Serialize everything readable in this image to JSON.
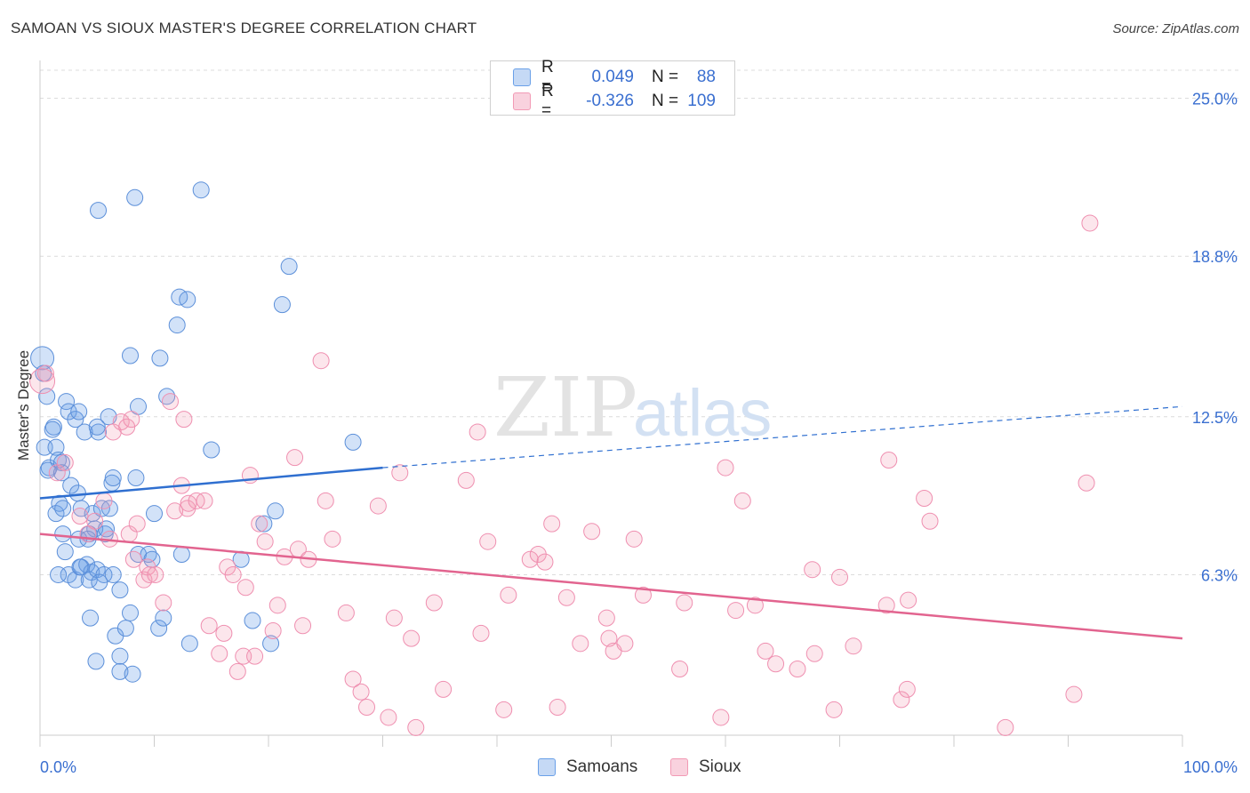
{
  "header": {
    "title": "SAMOAN VS SIOUX MASTER'S DEGREE CORRELATION CHART",
    "source": "Source: ZipAtlas.com"
  },
  "watermark": {
    "zip": "ZIP",
    "atlas": "atlas"
  },
  "legend": {
    "rows": [
      {
        "r_label": "R =",
        "r_value": "0.049",
        "n_label": "N =",
        "n_value": "88",
        "color": "#6aa0e8"
      },
      {
        "r_label": "R =",
        "r_value": "-0.326",
        "n_label": "N =",
        "n_value": "109",
        "color": "#f29ab5"
      }
    ]
  },
  "bottom_legend": [
    "Samoans",
    "Sioux"
  ],
  "colors": {
    "blue": "#5b8fd9",
    "blue_line": "#2f6fd0",
    "pink": "#ef8fb0",
    "pink_line": "#e2648f",
    "tick_label": "#3a6fd0"
  },
  "chart_data": {
    "type": "scatter",
    "title": "SAMOAN VS SIOUX MASTER'S DEGREE CORRELATION CHART",
    "xlabel": "",
    "ylabel": "Master's Degree",
    "xlim": [
      0,
      100
    ],
    "ylim": [
      0,
      26.1
    ],
    "x_tick_labels": [
      "0.0%",
      "100.0%"
    ],
    "y_ticks": [
      6.3,
      12.5,
      18.8,
      25.0
    ],
    "y_tick_labels": [
      "6.3%",
      "12.5%",
      "18.8%",
      "25.0%"
    ],
    "grid": true,
    "legend_position": "top-center",
    "series": [
      {
        "name": "Samoans",
        "color": "#6aa0e8",
        "trend": {
          "x": [
            0,
            30
          ],
          "y": [
            9.3,
            10.5
          ],
          "dashed_to": [
            100,
            12.9
          ]
        },
        "points": [
          [
            0.2,
            14.8
          ],
          [
            0.3,
            14.2
          ],
          [
            0.6,
            13.3
          ],
          [
            0.4,
            11.3
          ],
          [
            0.8,
            10.5
          ],
          [
            1.2,
            12.1
          ],
          [
            1.4,
            11.3
          ],
          [
            1.6,
            10.8
          ],
          [
            1.1,
            12.0
          ],
          [
            0.7,
            10.4
          ],
          [
            1.9,
            10.7
          ],
          [
            2.3,
            13.1
          ],
          [
            2.5,
            12.7
          ],
          [
            2.7,
            9.8
          ],
          [
            3.1,
            12.4
          ],
          [
            3.4,
            12.7
          ],
          [
            1.4,
            8.7
          ],
          [
            1.7,
            9.1
          ],
          [
            2.0,
            8.9
          ],
          [
            3.3,
            9.5
          ],
          [
            3.6,
            8.9
          ],
          [
            3.9,
            11.9
          ],
          [
            4.6,
            8.7
          ],
          [
            4.8,
            8.1
          ],
          [
            4.3,
            7.9
          ],
          [
            5.1,
            11.9
          ],
          [
            5.4,
            8.9
          ],
          [
            5.7,
            7.9
          ],
          [
            6.0,
            12.5
          ],
          [
            5.0,
            12.1
          ],
          [
            6.3,
            9.9
          ],
          [
            6.4,
            10.1
          ],
          [
            6.1,
            8.9
          ],
          [
            2.2,
            7.2
          ],
          [
            2.5,
            6.3
          ],
          [
            3.1,
            6.1
          ],
          [
            3.6,
            6.6
          ],
          [
            4.1,
            6.7
          ],
          [
            4.3,
            6.1
          ],
          [
            4.5,
            6.4
          ],
          [
            5.0,
            6.5
          ],
          [
            5.6,
            6.3
          ],
          [
            7.0,
            5.7
          ],
          [
            7.9,
            4.8
          ],
          [
            8.4,
            10.1
          ],
          [
            8.6,
            7.1
          ],
          [
            9.5,
            7.1
          ],
          [
            9.8,
            6.9
          ],
          [
            10.0,
            8.7
          ],
          [
            10.4,
            4.2
          ],
          [
            10.8,
            4.6
          ],
          [
            11.1,
            13.3
          ],
          [
            12.4,
            7.1
          ],
          [
            13.1,
            3.6
          ],
          [
            12.0,
            16.1
          ],
          [
            12.2,
            17.2
          ],
          [
            12.9,
            17.1
          ],
          [
            14.1,
            21.4
          ],
          [
            15.0,
            11.2
          ],
          [
            17.6,
            6.9
          ],
          [
            18.6,
            4.5
          ],
          [
            19.6,
            8.3
          ],
          [
            20.2,
            3.6
          ],
          [
            20.6,
            8.8
          ],
          [
            21.2,
            16.9
          ],
          [
            21.8,
            18.4
          ],
          [
            27.4,
            11.5
          ],
          [
            5.1,
            20.6
          ],
          [
            8.3,
            21.1
          ],
          [
            7.9,
            14.9
          ],
          [
            10.5,
            14.8
          ],
          [
            8.6,
            12.9
          ],
          [
            4.4,
            4.6
          ],
          [
            4.9,
            2.9
          ],
          [
            7.0,
            3.1
          ],
          [
            7.0,
            2.5
          ],
          [
            8.1,
            2.4
          ],
          [
            6.6,
            3.9
          ],
          [
            7.5,
            4.2
          ],
          [
            5.8,
            8.1
          ],
          [
            1.9,
            10.3
          ],
          [
            3.5,
            6.6
          ],
          [
            3.4,
            7.7
          ],
          [
            1.6,
            6.3
          ],
          [
            4.2,
            7.7
          ],
          [
            6.4,
            6.3
          ],
          [
            5.2,
            6.0
          ],
          [
            2.0,
            7.9
          ]
        ]
      },
      {
        "name": "Sioux",
        "color": "#f29ab5",
        "trend": {
          "x": [
            0,
            100
          ],
          "y": [
            7.9,
            3.8
          ]
        },
        "points": [
          [
            0.2,
            13.9
          ],
          [
            0.5,
            14.2
          ],
          [
            1.5,
            10.3
          ],
          [
            2.2,
            10.7
          ],
          [
            3.5,
            8.6
          ],
          [
            4.2,
            7.9
          ],
          [
            4.8,
            8.4
          ],
          [
            5.6,
            9.2
          ],
          [
            6.1,
            7.7
          ],
          [
            6.4,
            11.9
          ],
          [
            7.1,
            12.3
          ],
          [
            7.6,
            12.1
          ],
          [
            8.0,
            12.4
          ],
          [
            7.8,
            7.9
          ],
          [
            8.2,
            6.9
          ],
          [
            8.5,
            8.3
          ],
          [
            9.1,
            6.1
          ],
          [
            9.4,
            6.6
          ],
          [
            9.6,
            6.3
          ],
          [
            10.1,
            6.3
          ],
          [
            10.8,
            5.2
          ],
          [
            11.4,
            13.1
          ],
          [
            11.8,
            8.8
          ],
          [
            12.4,
            9.8
          ],
          [
            12.9,
            8.9
          ],
          [
            12.6,
            12.4
          ],
          [
            13.0,
            9.1
          ],
          [
            13.7,
            9.2
          ],
          [
            14.4,
            9.2
          ],
          [
            14.8,
            4.3
          ],
          [
            15.7,
            3.2
          ],
          [
            16.1,
            4.0
          ],
          [
            16.4,
            6.6
          ],
          [
            16.9,
            6.3
          ],
          [
            17.3,
            2.5
          ],
          [
            17.8,
            3.1
          ],
          [
            18.0,
            5.8
          ],
          [
            18.4,
            10.2
          ],
          [
            18.8,
            3.1
          ],
          [
            19.2,
            8.3
          ],
          [
            19.7,
            7.6
          ],
          [
            20.4,
            4.1
          ],
          [
            20.8,
            5.1
          ],
          [
            21.4,
            7.0
          ],
          [
            22.3,
            10.9
          ],
          [
            22.6,
            7.3
          ],
          [
            23.0,
            4.3
          ],
          [
            23.5,
            6.9
          ],
          [
            24.6,
            14.7
          ],
          [
            25.0,
            9.2
          ],
          [
            25.6,
            7.7
          ],
          [
            26.8,
            4.8
          ],
          [
            27.4,
            2.2
          ],
          [
            28.1,
            1.7
          ],
          [
            28.6,
            1.1
          ],
          [
            29.6,
            9.0
          ],
          [
            30.5,
            0.7
          ],
          [
            31.0,
            4.6
          ],
          [
            31.5,
            10.3
          ],
          [
            32.5,
            3.8
          ],
          [
            32.9,
            0.3
          ],
          [
            34.5,
            5.2
          ],
          [
            35.3,
            1.8
          ],
          [
            37.3,
            10.0
          ],
          [
            38.3,
            11.9
          ],
          [
            38.6,
            4.0
          ],
          [
            39.2,
            7.6
          ],
          [
            40.6,
            1.0
          ],
          [
            41.0,
            5.5
          ],
          [
            42.9,
            6.9
          ],
          [
            43.6,
            7.1
          ],
          [
            44.2,
            6.8
          ],
          [
            44.8,
            8.3
          ],
          [
            45.3,
            1.1
          ],
          [
            46.1,
            5.4
          ],
          [
            47.3,
            3.6
          ],
          [
            48.3,
            8.0
          ],
          [
            49.6,
            4.6
          ],
          [
            49.8,
            3.8
          ],
          [
            50.2,
            3.3
          ],
          [
            51.2,
            3.6
          ],
          [
            52.0,
            7.7
          ],
          [
            52.8,
            5.5
          ],
          [
            56.0,
            2.6
          ],
          [
            56.4,
            5.2
          ],
          [
            59.6,
            0.7
          ],
          [
            60.0,
            10.5
          ],
          [
            60.9,
            4.9
          ],
          [
            61.5,
            9.2
          ],
          [
            62.6,
            5.1
          ],
          [
            63.5,
            3.3
          ],
          [
            64.4,
            2.8
          ],
          [
            66.3,
            2.6
          ],
          [
            67.6,
            6.5
          ],
          [
            67.8,
            3.2
          ],
          [
            69.5,
            1.0
          ],
          [
            70.0,
            6.2
          ],
          [
            71.2,
            3.5
          ],
          [
            74.1,
            5.1
          ],
          [
            74.3,
            10.8
          ],
          [
            75.4,
            1.4
          ],
          [
            75.9,
            1.8
          ],
          [
            76.0,
            5.3
          ],
          [
            77.4,
            9.3
          ],
          [
            77.9,
            8.4
          ],
          [
            90.5,
            1.6
          ],
          [
            91.6,
            9.9
          ],
          [
            91.9,
            20.1
          ],
          [
            84.5,
            0.3
          ]
        ]
      }
    ]
  }
}
